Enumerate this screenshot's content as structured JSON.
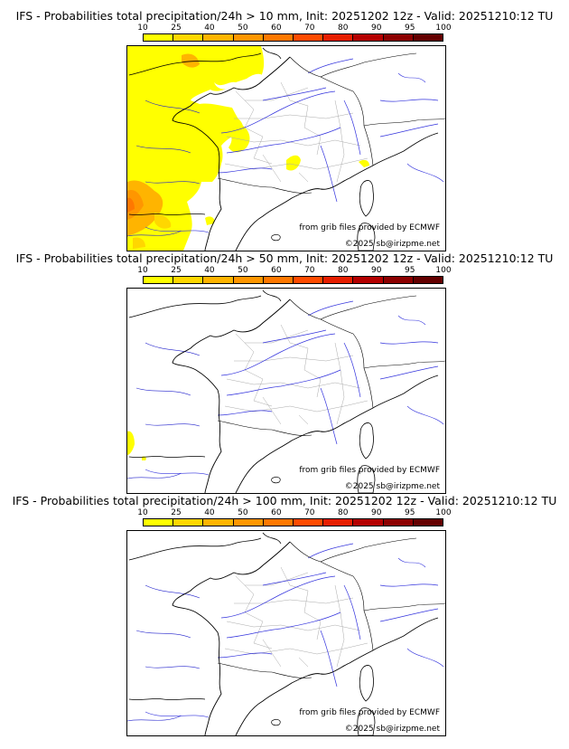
{
  "scale": {
    "labels": [
      "10",
      "25",
      "40",
      "50",
      "60",
      "70",
      "80",
      "90",
      "95",
      "100"
    ],
    "colors": [
      "#ffff00",
      "#ffd700",
      "#ffb400",
      "#ff9600",
      "#ff7800",
      "#ff4b00",
      "#e61e00",
      "#b40000",
      "#8c0000",
      "#640000"
    ]
  },
  "panels": [
    {
      "title": "IFS - Probabilities total precipitation/24h > 10 mm, Init: 20251202 12z - Valid: 20251210:12 TU",
      "source": "from grib files provided by ECMWF",
      "copyright": "©2025 sb@irizpme.net"
    },
    {
      "title": "IFS - Probabilities total precipitation/24h > 50 mm, Init: 20251202 12z - Valid: 20251210:12 TU",
      "source": "from grib files provided by ECMWF",
      "copyright": "©2025 sb@irizpme.net"
    },
    {
      "title": "IFS - Probabilities total precipitation/24h > 100 mm, Init: 20251202 12z - Valid: 20251210:12 TU",
      "source": "from grib files provided by ECMWF",
      "copyright": "©2025 sb@irizpme.net"
    }
  ]
}
